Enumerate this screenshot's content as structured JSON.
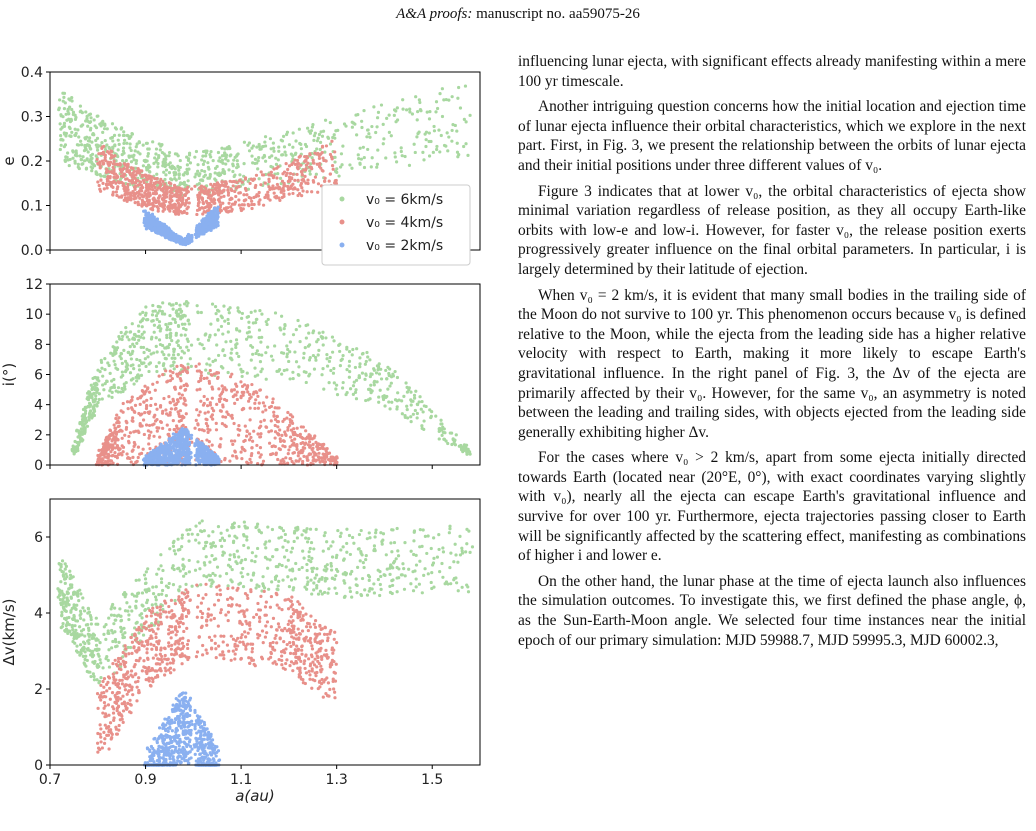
{
  "header": {
    "journal": "A&A proofs:",
    "rest": "manuscript no. aa59075-26"
  },
  "chart_data": [
    {
      "type": "scatter",
      "panel": "top",
      "xlabel": "",
      "ylabel": "e",
      "xlim": [
        0.7,
        1.6
      ],
      "ylim": [
        0.0,
        0.4
      ],
      "yticks": [
        "0.0",
        "0.1",
        "0.2",
        "0.3",
        "0.4"
      ],
      "legend_position": "right",
      "series": [
        {
          "name": "v₀ = 6km/s",
          "color": "#a8d8a0",
          "x": [
            0.72,
            0.8,
            0.9,
            0.98,
            1.1,
            1.3,
            1.58
          ],
          "y": [
            0.36,
            0.3,
            0.25,
            0.22,
            0.24,
            0.3,
            0.38
          ]
        },
        {
          "name": "v₀ = 4km/s",
          "color": "#e8908a",
          "x": [
            0.8,
            0.9,
            0.98,
            1.1,
            1.3
          ],
          "y": [
            0.24,
            0.17,
            0.14,
            0.16,
            0.25
          ]
        },
        {
          "name": "v₀ = 2km/s",
          "color": "#8ab0f0",
          "x": [
            0.9,
            0.98,
            1.05
          ],
          "y": [
            0.09,
            0.02,
            0.1
          ]
        }
      ]
    },
    {
      "type": "scatter",
      "panel": "middle",
      "xlabel": "",
      "ylabel": "i(°)",
      "xlim": [
        0.7,
        1.6
      ],
      "ylim": [
        0,
        12
      ],
      "yticks": [
        "0",
        "2",
        "4",
        "6",
        "8",
        "10",
        "12"
      ],
      "series": [
        {
          "color": "#a8d8a0",
          "x": [
            0.75,
            0.8,
            0.9,
            1.0,
            1.2,
            1.4,
            1.58
          ],
          "y": [
            1.0,
            7.0,
            10.6,
            11.0,
            10.0,
            7.0,
            1.0
          ]
        },
        {
          "color": "#e8908a",
          "x": [
            0.8,
            0.85,
            0.95,
            1.0,
            1.1,
            1.2,
            1.3
          ],
          "y": [
            0.5,
            4.0,
            6.5,
            6.8,
            6.0,
            3.5,
            0.5
          ]
        },
        {
          "color": "#8ab0f0",
          "x": [
            0.9,
            0.98,
            1.05
          ],
          "y": [
            0.5,
            2.5,
            0.5
          ]
        }
      ]
    },
    {
      "type": "scatter",
      "panel": "bottom",
      "xlabel": "a(au)",
      "ylabel": "Δv(km/s)",
      "xlim": [
        0.7,
        1.6
      ],
      "ylim": [
        0,
        7
      ],
      "xticks": [
        "0.7",
        "0.9",
        "1.1",
        "1.3",
        "1.5"
      ],
      "yticks": [
        "0",
        "2",
        "4",
        "6"
      ],
      "series": [
        {
          "color": "#a8d8a0",
          "x": [
            0.72,
            0.8,
            1.0,
            1.3,
            1.58
          ],
          "y": [
            5.5,
            3.8,
            6.5,
            6.2,
            6.3
          ]
        },
        {
          "color": "#e8908a",
          "x": [
            0.8,
            0.9,
            1.0,
            1.2,
            1.3
          ],
          "y": [
            2.0,
            4.0,
            4.8,
            4.5,
            3.5
          ]
        },
        {
          "color": "#8ab0f0",
          "x": [
            0.9,
            0.98,
            1.05
          ],
          "y": [
            0.3,
            2.0,
            0.5
          ]
        }
      ]
    }
  ],
  "text": {
    "p1": "influencing lunar ejecta, with significant effects already manifesting within a mere 100 yr timescale.",
    "p2": "Another intriguing question concerns how the initial location and ejection time of lunar ejecta influence their orbital characteristics, which we explore in the next part. First, in Fig. 3, we present the relationship between the orbits of lunar ejecta and their initial positions under three different values of v₀.",
    "p3": "Figure 3 indicates that at lower v₀, the orbital characteristics of ejecta show minimal variation regardless of release position, as they all occupy Earth-like orbits with low-e and low-i. However, for faster v₀, the release position exerts progressively greater influence on the final orbital parameters. In particular, i is largely determined by their latitude of ejection.",
    "p4": "When v₀ = 2 km/s, it is evident that many small bodies in the trailing side of the Moon do not survive to 100 yr. This phenomenon occurs because v₀ is defined relative to the Moon, while the ejecta from the leading side has a higher relative velocity with respect to Earth, making it more likely to escape Earth's gravitational influence. In the right panel of Fig. 3, the Δv of the ejecta are primarily affected by their v₀. However, for the same v₀, an asymmetry is noted between the leading and trailing sides, with objects ejected from the leading side generally exhibiting higher Δv.",
    "p5": "For the cases where v₀ > 2 km/s, apart from some ejecta initially directed towards Earth (located near (20°E, 0°), with exact coordinates varying slightly with v₀), nearly all the ejecta can escape Earth's gravitational influence and survive for over 100 yr. Furthermore, ejecta trajectories passing closer to Earth will be significantly affected by the scattering effect, manifesting as combinations of higher i and lower e.",
    "p6": "On the other hand, the lunar phase at the time of ejecta launch also influences the simulation outcomes. To investigate this, we first defined the phase angle, ϕ, as the Sun-Earth-Moon angle. We selected four time instances near the initial epoch of our primary simulation: MJD 59988.7, MJD 59995.3, MJD 60002.3,"
  }
}
